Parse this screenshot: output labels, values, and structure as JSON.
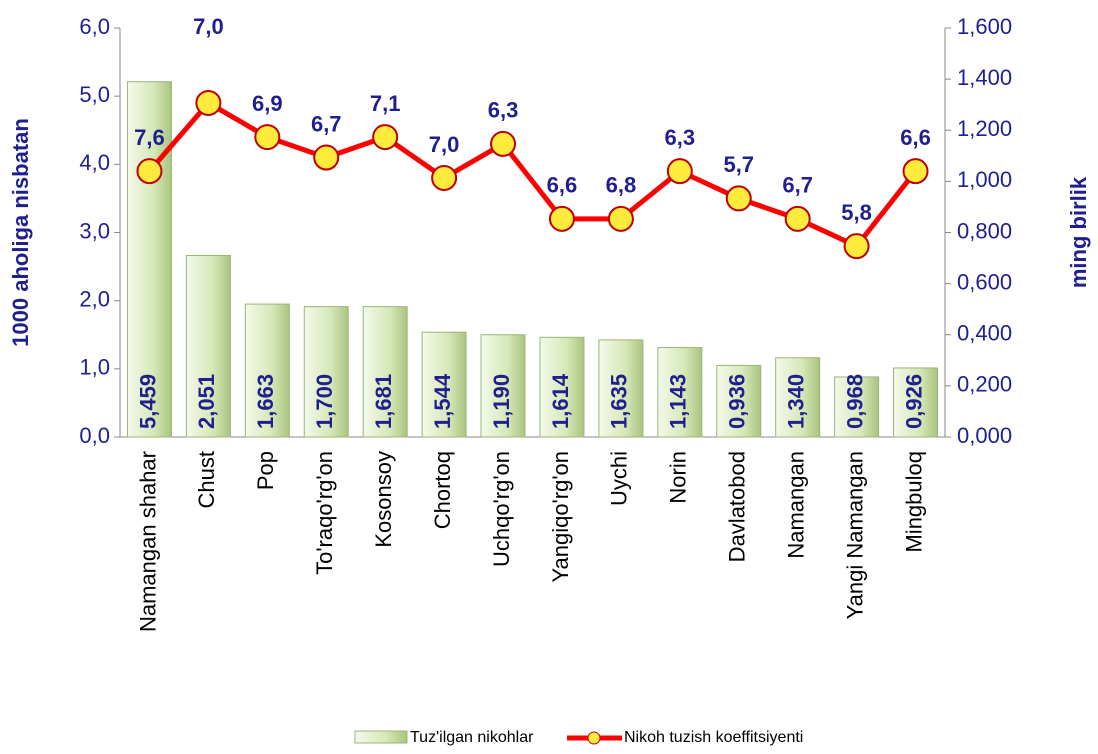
{
  "chart_data": {
    "type": "bar-line",
    "y_label": "1000 aholiga nisbatan",
    "y2_label": "ming birlik",
    "categories": [
      "Namangan shahar",
      "Chust",
      "Pop",
      "To'raqo'rg'on",
      "Kosonsoy",
      "Chortoq",
      "Uchqo'rg'on",
      "Yangiqo'rg'on",
      "Uychi",
      "Norin",
      "Davlatobod",
      "Namangan",
      "Yangi Namangan",
      "Mingbuloq"
    ],
    "series": [
      {
        "name": "Tuz'ilgan nikohlar",
        "type": "bar",
        "axis": "y2",
        "color": "#d6e8b8",
        "values": [
          1.39,
          0.71,
          0.52,
          0.51,
          0.51,
          0.41,
          0.4,
          0.39,
          0.38,
          0.35,
          0.28,
          0.31,
          0.235,
          0.27
        ],
        "annotations": [
          "5,459",
          "2,051",
          "1,663",
          "1,700",
          "1,681",
          "1,544",
          "1,190",
          "1,614",
          "1,635",
          "1,143",
          "0,936",
          "1,340",
          "0,968",
          "0,926"
        ]
      },
      {
        "name": "Nikoh tuzish koeffitsiyenti",
        "type": "line",
        "color": "#ff0000",
        "marker_color": "#ffeb3b",
        "values": [
          3.9,
          4.9,
          4.4,
          4.1,
          4.4,
          3.8,
          4.3,
          3.2,
          3.2,
          3.9,
          3.5,
          3.2,
          2.8,
          3.9
        ],
        "annotations": [
          "7,6",
          "7,0",
          "6,9",
          "6,7",
          "7,1",
          "7,0",
          "6,3",
          "6,6",
          "6,8",
          "6,3",
          "5,7",
          "6,7",
          "5,8",
          "6,6"
        ]
      }
    ],
    "ylim": [
      0,
      6
    ],
    "yticks": [
      {
        "value": 0,
        "label": "0,0"
      },
      {
        "value": 1,
        "label": "1,0"
      },
      {
        "value": 2,
        "label": "2,0"
      },
      {
        "value": 3,
        "label": "3,0"
      },
      {
        "value": 4,
        "label": "4,0"
      },
      {
        "value": 5,
        "label": "5,0"
      },
      {
        "value": 6,
        "label": "6,0"
      }
    ],
    "y2lim": [
      0,
      1.6
    ],
    "y2ticks": [
      {
        "value": 0,
        "label": "0,000"
      },
      {
        "value": 0.2,
        "label": "0,200"
      },
      {
        "value": 0.4,
        "label": "0,400"
      },
      {
        "value": 0.6,
        "label": "0,600"
      },
      {
        "value": 0.8,
        "label": "0,800"
      },
      {
        "value": 1,
        "label": "1,000"
      },
      {
        "value": 1.2,
        "label": "1,200"
      },
      {
        "value": 1.4,
        "label": "1,400"
      },
      {
        "value": 1.6,
        "label": "1,600"
      }
    ],
    "legend": "bottom"
  }
}
